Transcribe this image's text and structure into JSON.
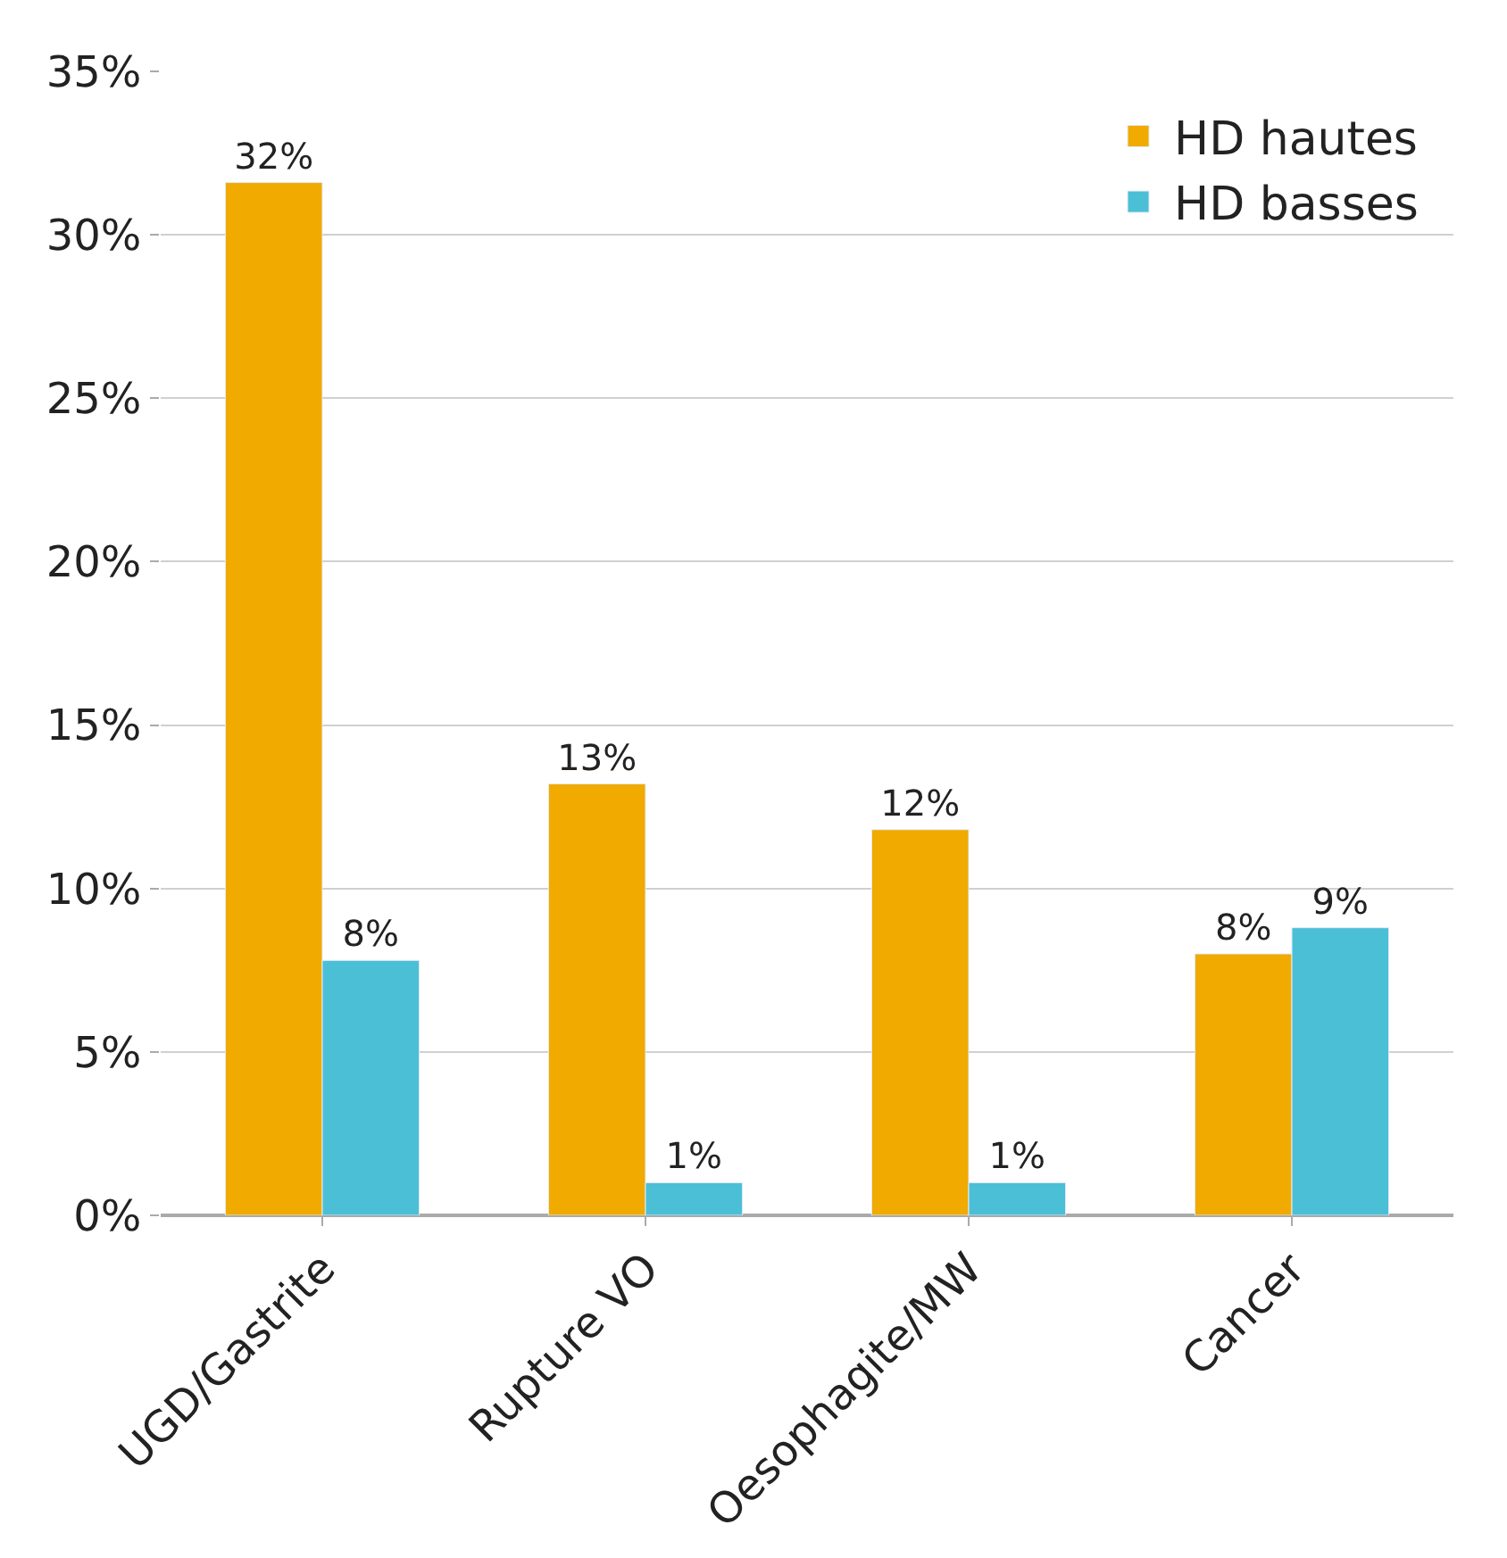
{
  "chart_data": {
    "type": "bar",
    "categories": [
      "UGD/Gastrite",
      "Rupture VO",
      "Oesophagite/MW",
      "Cancer"
    ],
    "series": [
      {
        "name": "HD hautes",
        "color": "#f0aa00",
        "values": [
          31.6,
          13.2,
          11.8,
          8.0
        ],
        "value_labels": [
          "32%",
          "13%",
          "12%",
          "8%"
        ]
      },
      {
        "name": "HD basses",
        "color": "#4bbfd6",
        "values": [
          7.8,
          1.0,
          1.0,
          8.8
        ],
        "value_labels": [
          "8%",
          "1%",
          "1%",
          "9%"
        ]
      }
    ],
    "ylim": [
      0,
      35
    ],
    "yticks": [
      {
        "value": 0,
        "label": "0%"
      },
      {
        "value": 5,
        "label": "5%"
      },
      {
        "value": 10,
        "label": "10%"
      },
      {
        "value": 15,
        "label": "15%"
      },
      {
        "value": 20,
        "label": "20%"
      },
      {
        "value": 25,
        "label": "25%"
      },
      {
        "value": 30,
        "label": "30%"
      },
      {
        "value": 35,
        "label": "35%"
      }
    ],
    "grid": "y",
    "legend": "top right"
  }
}
